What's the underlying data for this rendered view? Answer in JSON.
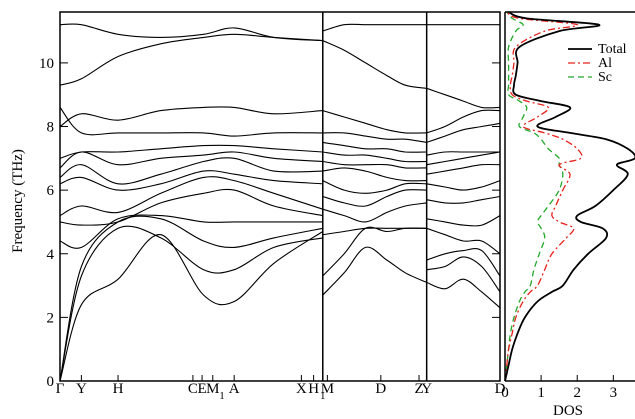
{
  "colors": {
    "total": "#000000",
    "al": "#e8201a",
    "sc": "#22a82a",
    "frame": "#000000"
  },
  "chart_data": [
    {
      "type": "line",
      "subtype": "phonon-band-structure",
      "title": "",
      "xlabel": "",
      "ylabel": "Frequency (THz)",
      "ylim": [
        0,
        11.6
      ],
      "yticks": [
        0,
        2,
        4,
        6,
        8,
        10
      ],
      "xticks": [
        {
          "label": "Γ",
          "k": 0
        },
        {
          "label": "Y",
          "k": 0.07
        },
        {
          "label": "H",
          "k": 0.19
        },
        {
          "label": "C",
          "k": 0.435
        },
        {
          "label": "E",
          "k": 0.465
        },
        {
          "label": "M",
          "k": 0.5
        },
        {
          "label": "1",
          "k": 0.53,
          "subscript": true
        },
        {
          "label": "A",
          "k": 0.57
        },
        {
          "label": "X",
          "k": 0.79
        },
        {
          "label": "H",
          "k": 0.83
        },
        {
          "label": "1",
          "k": 0.86,
          "subscript": true
        },
        {
          "label": "M",
          "k": 0.875
        },
        {
          "label": "D",
          "k": 1.05
        },
        {
          "label": "Z",
          "k": 1.175
        },
        {
          "label": "Y",
          "k": 1.2
        },
        {
          "label": "D",
          "k": 1.44
        }
      ],
      "segment_boundaries": [
        0,
        0.86,
        1.2,
        1.44
      ],
      "segments": [
        {
          "k_range": [
            0,
            0.86
          ],
          "k": [
            0,
            0.07,
            0.19,
            0.33,
            0.47,
            0.57,
            0.7,
            0.86
          ],
          "bands": [
            [
              0,
              2.4,
              3.2,
              4.6,
              2.7,
              2.5,
              3.7,
              4.7
            ],
            [
              0,
              3.3,
              4.8,
              4.5,
              3.5,
              3.5,
              4.2,
              4.5
            ],
            [
              0,
              3.6,
              5.0,
              5.1,
              4.4,
              4.2,
              4.5,
              4.8
            ],
            [
              4.4,
              4.2,
              5.1,
              5.2,
              5.0,
              5.0,
              5.0,
              5.0
            ],
            [
              5.0,
              4.9,
              5.0,
              5.6,
              5.9,
              6.0,
              5.5,
              5.2
            ],
            [
              5.2,
              5.5,
              5.3,
              5.9,
              6.4,
              6.3,
              5.9,
              5.4
            ],
            [
              6.2,
              6.4,
              6.0,
              6.2,
              6.6,
              6.5,
              6.3,
              6.2
            ],
            [
              6.4,
              6.8,
              6.2,
              6.5,
              6.9,
              7.0,
              6.6,
              6.6
            ],
            [
              6.7,
              7.2,
              6.8,
              7.0,
              7.1,
              7.2,
              7.0,
              6.9
            ],
            [
              7.0,
              7.2,
              7.2,
              7.3,
              7.4,
              7.4,
              7.3,
              7.2
            ],
            [
              8.0,
              8.4,
              8.2,
              8.5,
              8.6,
              8.6,
              8.4,
              8.5
            ],
            [
              8.6,
              7.8,
              7.8,
              7.8,
              7.8,
              7.7,
              7.8,
              7.8
            ],
            [
              9.3,
              9.5,
              10.2,
              10.6,
              10.8,
              10.9,
              10.8,
              10.7
            ],
            [
              11.2,
              11.2,
              10.9,
              10.8,
              10.9,
              11.1,
              10.8,
              10.7
            ]
          ]
        },
        {
          "k_range": [
            0.86,
            1.2
          ],
          "k": [
            0.86,
            0.93,
            1.0,
            1.07,
            1.13,
            1.2
          ],
          "bands": [
            [
              2.7,
              3.4,
              4.2,
              3.8,
              3.4,
              3.1
            ],
            [
              3.3,
              4.0,
              4.8,
              4.7,
              4.8,
              4.8
            ],
            [
              4.6,
              4.7,
              4.8,
              4.8,
              4.8,
              4.8
            ],
            [
              5.4,
              5.2,
              5.0,
              5.3,
              5.5,
              5.6
            ],
            [
              5.8,
              5.6,
              5.5,
              5.8,
              6.0,
              6.0
            ],
            [
              6.3,
              6.0,
              5.9,
              6.0,
              6.2,
              6.2
            ],
            [
              6.6,
              6.7,
              6.6,
              6.4,
              6.3,
              6.3
            ],
            [
              6.9,
              6.8,
              6.8,
              6.8,
              6.7,
              6.7
            ],
            [
              7.2,
              7.1,
              7.1,
              7.0,
              6.9,
              6.9
            ],
            [
              7.5,
              7.4,
              7.3,
              7.3,
              7.2,
              7.2
            ],
            [
              7.8,
              7.8,
              7.7,
              7.6,
              7.6,
              7.5
            ],
            [
              8.5,
              8.3,
              8.1,
              7.9,
              7.8,
              7.8
            ],
            [
              10.7,
              10.4,
              10.0,
              9.6,
              9.3,
              9.2
            ],
            [
              11.0,
              11.2,
              11.2,
              11.2,
              11.2,
              11.2
            ]
          ]
        },
        {
          "k_range": [
            1.2,
            1.44
          ],
          "k": [
            1.2,
            1.26,
            1.32,
            1.38,
            1.44
          ],
          "bands": [
            [
              3.1,
              2.9,
              3.2,
              2.8,
              2.3
            ],
            [
              3.5,
              3.6,
              3.9,
              3.6,
              2.8
            ],
            [
              3.8,
              4.0,
              4.1,
              4.1,
              3.3
            ],
            [
              4.8,
              4.6,
              4.4,
              4.4,
              4.0
            ],
            [
              5.1,
              5.0,
              4.9,
              4.9,
              5.2
            ],
            [
              5.7,
              5.6,
              5.6,
              5.7,
              5.8
            ],
            [
              6.2,
              6.1,
              6.0,
              6.1,
              6.3
            ],
            [
              6.5,
              6.6,
              6.7,
              6.8,
              6.8
            ],
            [
              6.8,
              6.9,
              7.0,
              7.1,
              7.2
            ],
            [
              7.1,
              7.2,
              7.2,
              7.2,
              7.2
            ],
            [
              7.5,
              7.7,
              7.9,
              8.0,
              8.1
            ],
            [
              7.8,
              8.0,
              8.3,
              8.5,
              8.5
            ],
            [
              9.2,
              9.0,
              8.8,
              8.6,
              8.6
            ],
            [
              11.2,
              11.2,
              11.2,
              11.2,
              11.2
            ]
          ]
        }
      ]
    },
    {
      "type": "line",
      "subtype": "density-of-states",
      "title": "",
      "xlabel": "DOS",
      "ylabel": "",
      "xlim": [
        0,
        3.6
      ],
      "xticks": [
        0,
        1,
        2,
        3
      ],
      "ylim": [
        0,
        11.6
      ],
      "legend": {
        "position": "top-right",
        "entries": [
          "Total",
          "Al",
          "Sc"
        ]
      },
      "freq": [
        0,
        0.5,
        1.0,
        1.5,
        2.0,
        2.5,
        2.8,
        3.0,
        3.5,
        4.0,
        4.5,
        4.8,
        5.0,
        5.2,
        5.5,
        6.0,
        6.5,
        6.8,
        7.0,
        7.3,
        7.6,
        7.8,
        8.0,
        8.3,
        8.6,
        8.8,
        9.0,
        9.3,
        9.6,
        10.0,
        10.5,
        11.0,
        11.2,
        11.4,
        11.6
      ],
      "series": [
        {
          "name": "Total",
          "values": [
            0,
            0.1,
            0.2,
            0.35,
            0.55,
            0.9,
            1.3,
            1.6,
            1.9,
            2.3,
            2.8,
            2.7,
            2.1,
            2.0,
            2.5,
            3.0,
            3.4,
            3.1,
            3.6,
            3.4,
            2.8,
            1.8,
            0.9,
            1.4,
            1.8,
            1.0,
            0.3,
            0.25,
            0.3,
            0.35,
            0.4,
            1.5,
            2.6,
            0.6,
            0.1
          ]
        },
        {
          "name": "Al",
          "values": [
            0,
            0.05,
            0.1,
            0.2,
            0.3,
            0.5,
            0.7,
            0.9,
            1.1,
            1.3,
            1.7,
            1.9,
            1.5,
            1.3,
            1.4,
            1.6,
            1.8,
            1.5,
            2.1,
            2.0,
            1.6,
            1.1,
            0.5,
            0.9,
            1.2,
            0.6,
            0.2,
            0.15,
            0.2,
            0.25,
            0.3,
            1.1,
            2.0,
            0.4,
            0.05
          ]
        },
        {
          "name": "Sc",
          "values": [
            0,
            0.05,
            0.1,
            0.15,
            0.25,
            0.4,
            0.55,
            0.7,
            0.8,
            0.95,
            1.1,
            1.0,
            0.9,
            1.0,
            1.2,
            1.5,
            1.6,
            1.5,
            1.5,
            1.2,
            1.0,
            0.8,
            0.4,
            0.5,
            0.6,
            0.4,
            0.1,
            0.1,
            0.1,
            0.1,
            0.1,
            0.3,
            0.5,
            0.2,
            0.05
          ]
        }
      ]
    }
  ]
}
